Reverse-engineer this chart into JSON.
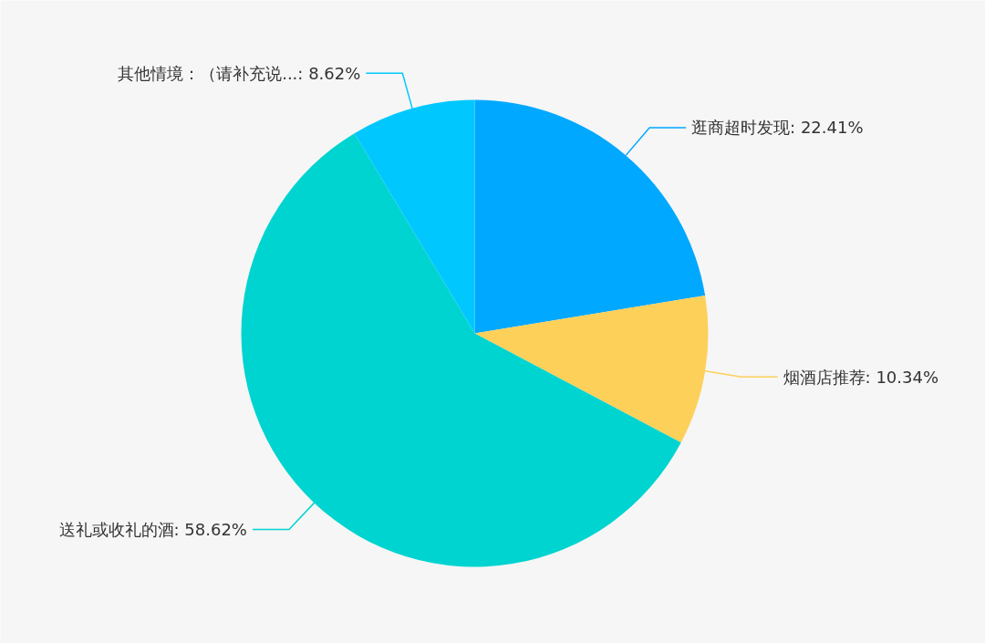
{
  "chart_data": {
    "type": "pie",
    "categories": [
      "逛商超时发现",
      "烟酒店推荐",
      "送礼或收礼的酒",
      "其他情境：（请补充说..."
    ],
    "values": [
      22.41,
      10.34,
      58.62,
      8.62
    ],
    "colors": [
      "#00a8ff",
      "#fdd05a",
      "#00d4d0",
      "#00c8ff"
    ],
    "value_labels": [
      "22.41%",
      "10.34%",
      "58.62%",
      "8.62%"
    ]
  }
}
